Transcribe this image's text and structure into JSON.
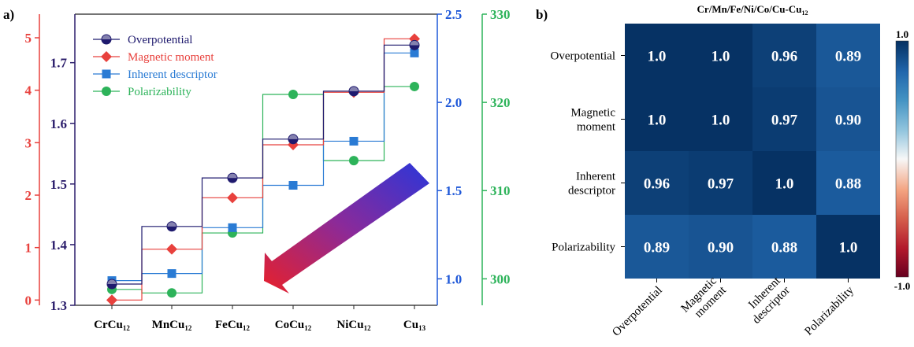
{
  "panel_a": {
    "label": "a)",
    "chart_data": {
      "type": "line",
      "title": "",
      "xlabel": "",
      "categories": [
        "CrCu12",
        "MnCu12",
        "FeCu12",
        "CoCu12",
        "NiCu12",
        "Cu13"
      ],
      "category_labels": [
        {
          "base": "CrCu",
          "sub": "12"
        },
        {
          "base": "MnCu",
          "sub": "12"
        },
        {
          "base": "FeCu",
          "sub": "12"
        },
        {
          "base": "CoCu",
          "sub": "12"
        },
        {
          "base": "NiCu",
          "sub": "12"
        },
        {
          "base": "Cu",
          "sub": "13"
        }
      ],
      "legend_position": "top-left",
      "series": [
        {
          "name": "Overpotential",
          "color": "#1f1a6e",
          "marker": "half-circle",
          "axis": "overpotential",
          "values": [
            1.335,
            1.43,
            1.51,
            1.574,
            1.653,
            1.729
          ]
        },
        {
          "name": "Magnetic moment",
          "color": "#e8413d",
          "marker": "diamond",
          "axis": "magnetic",
          "values": [
            0.0,
            0.97,
            1.95,
            2.96,
            3.96,
            4.98
          ]
        },
        {
          "name": "Inherent descriptor",
          "color": "#2a7bd4",
          "marker": "square",
          "axis": "inherent",
          "values": [
            0.99,
            1.03,
            1.29,
            1.53,
            1.78,
            2.28
          ]
        },
        {
          "name": "Polarizability",
          "color": "#2db35a",
          "marker": "circle",
          "axis": "polarizability",
          "values": [
            298.8,
            298.4,
            305.2,
            320.9,
            313.4,
            321.8
          ]
        }
      ],
      "axes": {
        "magnetic": {
          "color": "#e8413d",
          "range": [
            -0.1,
            5.45
          ],
          "ticks": [
            "0",
            "1",
            "2",
            "3",
            "4",
            "5"
          ]
        },
        "overpotential": {
          "color": "#2b1d6b",
          "range": [
            1.3,
            1.78
          ],
          "ticks": [
            "1.3",
            "1.4",
            "1.5",
            "1.6",
            "1.7"
          ]
        },
        "inherent": {
          "color": "#1f58d8",
          "range": [
            0.85,
            2.5
          ],
          "ticks": [
            "1.0",
            "1.5",
            "2.0",
            "2.5"
          ]
        },
        "polarizability": {
          "color": "#2db35a",
          "range": [
            297,
            330
          ],
          "ticks": [
            "300",
            "310",
            "320",
            "330"
          ]
        }
      }
    }
  },
  "panel_b": {
    "label": "b)",
    "chart_data": {
      "type": "heatmap",
      "title": "Cr/Mn/Fe/Ni/Co/Cu-Cu",
      "title_sub": "12",
      "row_labels": [
        [
          "Overpotential"
        ],
        [
          "Magnetic",
          "moment"
        ],
        [
          "Inherent",
          "descriptor"
        ],
        [
          "Polarizability"
        ]
      ],
      "col_labels": [
        [
          "Overpotential"
        ],
        [
          "Magnetic",
          "moment"
        ],
        [
          "Inherent",
          "descriptor"
        ],
        [
          "Polarizability"
        ]
      ],
      "values": [
        [
          1.0,
          1.0,
          0.96,
          0.89
        ],
        [
          1.0,
          1.0,
          0.97,
          0.9
        ],
        [
          0.96,
          0.97,
          1.0,
          0.88
        ],
        [
          0.89,
          0.9,
          0.88,
          1.0
        ]
      ],
      "cell_text": [
        [
          "1.0",
          "1.0",
          "0.96",
          "0.89"
        ],
        [
          "1.0",
          "1.0",
          "0.97",
          "0.90"
        ],
        [
          "0.96",
          "0.97",
          "1.0",
          "0.88"
        ],
        [
          "0.89",
          "0.90",
          "0.88",
          "1.0"
        ]
      ],
      "colorbar": {
        "min": -1.0,
        "max": 1.0,
        "min_label": "-1.0",
        "max_label": "1.0",
        "colormap": "RdBu"
      }
    }
  }
}
